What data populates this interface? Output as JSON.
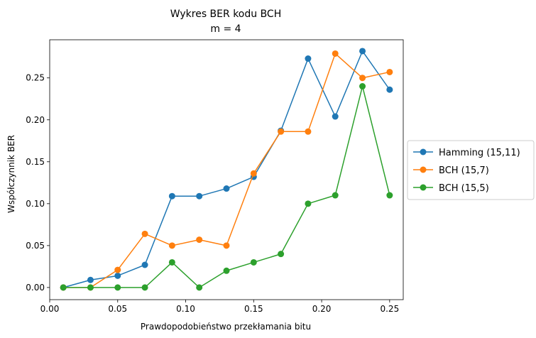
{
  "chart_data": {
    "type": "line",
    "title": "Wykres BER kodu BCH",
    "subtitle": "m = 4",
    "xlabel": "Prawdopodobieństwo przekłamania bitu",
    "ylabel": "Współczynnik BER",
    "xlim": [
      -0.0,
      0.26
    ],
    "ylim": [
      -0.0145,
      0.2955
    ],
    "xticks": [
      0.0,
      0.05,
      0.1,
      0.15,
      0.2,
      0.25
    ],
    "xtick_labels": [
      "0.00",
      "0.05",
      "0.10",
      "0.15",
      "0.20",
      "0.25"
    ],
    "yticks": [
      0.0,
      0.05,
      0.1,
      0.15,
      0.2,
      0.25
    ],
    "ytick_labels": [
      "0.00",
      "0.05",
      "0.10",
      "0.15",
      "0.20",
      "0.25"
    ],
    "grid": false,
    "legend_placement": "outside-right",
    "x": [
      0.01,
      0.03,
      0.05,
      0.07,
      0.09,
      0.11,
      0.13,
      0.15,
      0.17,
      0.19,
      0.21,
      0.23,
      0.25
    ],
    "series": [
      {
        "name": "Hamming (15,11)",
        "color": "#1f77b4",
        "values": [
          0.0,
          0.009,
          0.014,
          0.027,
          0.109,
          0.109,
          0.118,
          0.132,
          0.187,
          0.273,
          0.204,
          0.282,
          0.236
        ]
      },
      {
        "name": "BCH (15,7)",
        "color": "#ff7f0e",
        "values": [
          0.0,
          0.0,
          0.021,
          0.064,
          0.05,
          0.057,
          0.05,
          0.136,
          0.186,
          0.186,
          0.279,
          0.25,
          0.257
        ]
      },
      {
        "name": "BCH (15,5)",
        "color": "#2ca02c",
        "values": [
          0.0,
          0.0,
          0.0,
          0.0,
          0.03,
          0.0,
          0.02,
          0.03,
          0.04,
          0.1,
          0.11,
          0.24,
          0.11
        ]
      }
    ]
  }
}
